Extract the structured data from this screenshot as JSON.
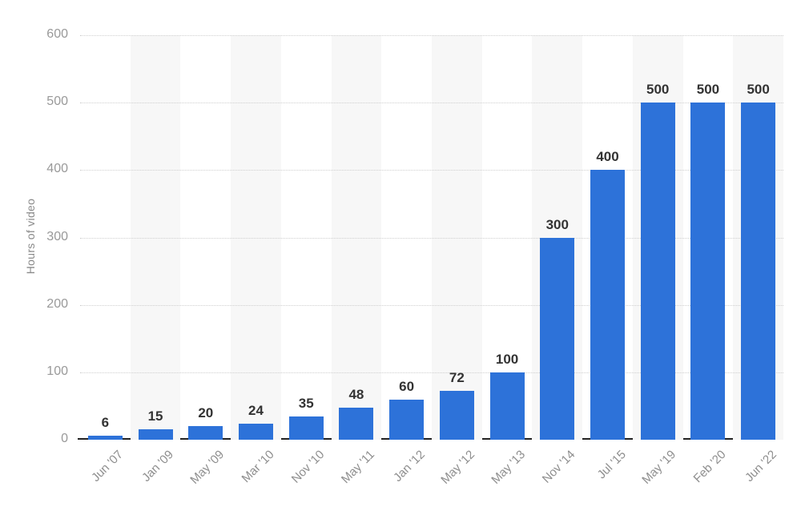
{
  "chart_data": {
    "type": "bar",
    "title": "",
    "ylabel": "Hours of video",
    "xlabel": "",
    "categories": [
      "Jun '07",
      "Jan '09",
      "May '09",
      "Mar '10",
      "Nov '10",
      "May '11",
      "Jan '12",
      "May '12",
      "May '13",
      "Nov '14",
      "Jul '15",
      "May '19",
      "Feb '20",
      "Jun '22"
    ],
    "values": [
      6,
      15,
      20,
      24,
      35,
      48,
      60,
      72,
      100,
      300,
      400,
      500,
      500,
      500
    ],
    "ylim": [
      0,
      600
    ],
    "yticks": [
      0,
      100,
      200,
      300,
      400,
      500,
      600
    ],
    "grid": "horizontal-dotted",
    "legend": "none",
    "value_labels_shown": true,
    "alternating_column_bands": "odd-indexed columns shaded",
    "colors": {
      "bar": "#2d72d9",
      "band": "#f7f7f7",
      "grid": "#cfcfcf",
      "axis_line": "#222222",
      "tick_label": "#999999",
      "xtick_label": "#8e8e8e",
      "value_label": "#333333",
      "ytitle": "#8a8a8a",
      "background": "#ffffff"
    }
  }
}
